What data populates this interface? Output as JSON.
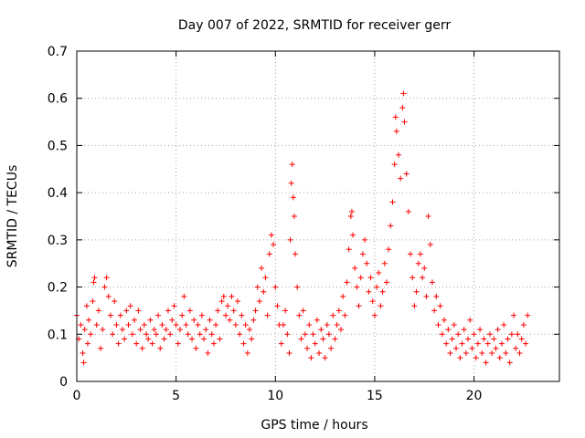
{
  "chart_data": {
    "type": "scatter",
    "title": "Day 007 of 2022, SRMTID for receiver gerr",
    "xlabel": "GPS time / hours",
    "ylabel": "SRMTID / TECUs",
    "xlim": [
      0,
      24.3
    ],
    "ylim": [
      0,
      0.7
    ],
    "xticks": [
      0,
      5,
      10,
      15,
      20
    ],
    "xtick_labels": [
      "0",
      "5",
      "10",
      "15",
      "20"
    ],
    "yticks": [
      0,
      0.1,
      0.2,
      0.3,
      0.4,
      0.5,
      0.6,
      0.7
    ],
    "ytick_labels": [
      "0",
      "0.1",
      "0.2",
      "0.3",
      "0.4",
      "0.5",
      "0.6",
      "0.7"
    ],
    "grid": true,
    "marker": "plus",
    "color": "#ff0000",
    "series": [
      {
        "name": "SRMTID",
        "points": [
          [
            0.0,
            0.14
          ],
          [
            0.1,
            0.09
          ],
          [
            0.2,
            0.12
          ],
          [
            0.3,
            0.06
          ],
          [
            0.35,
            0.04
          ],
          [
            0.4,
            0.11
          ],
          [
            0.5,
            0.16
          ],
          [
            0.55,
            0.08
          ],
          [
            0.6,
            0.13
          ],
          [
            0.7,
            0.1
          ],
          [
            0.8,
            0.17
          ],
          [
            0.85,
            0.21
          ],
          [
            0.9,
            0.22
          ],
          [
            1.0,
            0.12
          ],
          [
            1.1,
            0.15
          ],
          [
            1.2,
            0.07
          ],
          [
            1.3,
            0.11
          ],
          [
            1.4,
            0.2
          ],
          [
            1.5,
            0.22
          ],
          [
            1.6,
            0.18
          ],
          [
            1.7,
            0.14
          ],
          [
            1.8,
            0.1
          ],
          [
            1.9,
            0.17
          ],
          [
            2.0,
            0.12
          ],
          [
            2.1,
            0.08
          ],
          [
            2.2,
            0.14
          ],
          [
            2.3,
            0.11
          ],
          [
            2.4,
            0.09
          ],
          [
            2.5,
            0.15
          ],
          [
            2.6,
            0.12
          ],
          [
            2.7,
            0.16
          ],
          [
            2.8,
            0.1
          ],
          [
            2.9,
            0.13
          ],
          [
            3.0,
            0.08
          ],
          [
            3.1,
            0.15
          ],
          [
            3.2,
            0.11
          ],
          [
            3.3,
            0.07
          ],
          [
            3.4,
            0.12
          ],
          [
            3.5,
            0.1
          ],
          [
            3.6,
            0.09
          ],
          [
            3.7,
            0.13
          ],
          [
            3.8,
            0.08
          ],
          [
            3.9,
            0.11
          ],
          [
            4.0,
            0.1
          ],
          [
            4.1,
            0.14
          ],
          [
            4.2,
            0.07
          ],
          [
            4.3,
            0.12
          ],
          [
            4.4,
            0.09
          ],
          [
            4.5,
            0.11
          ],
          [
            4.6,
            0.15
          ],
          [
            4.7,
            0.1
          ],
          [
            4.8,
            0.13
          ],
          [
            4.9,
            0.16
          ],
          [
            5.0,
            0.12
          ],
          [
            5.1,
            0.08
          ],
          [
            5.2,
            0.11
          ],
          [
            5.3,
            0.14
          ],
          [
            5.4,
            0.18
          ],
          [
            5.5,
            0.12
          ],
          [
            5.6,
            0.1
          ],
          [
            5.7,
            0.15
          ],
          [
            5.8,
            0.09
          ],
          [
            5.9,
            0.13
          ],
          [
            6.0,
            0.07
          ],
          [
            6.1,
            0.12
          ],
          [
            6.2,
            0.1
          ],
          [
            6.3,
            0.14
          ],
          [
            6.4,
            0.09
          ],
          [
            6.5,
            0.11
          ],
          [
            6.6,
            0.06
          ],
          [
            6.7,
            0.13
          ],
          [
            6.8,
            0.1
          ],
          [
            6.9,
            0.08
          ],
          [
            7.0,
            0.12
          ],
          [
            7.1,
            0.15
          ],
          [
            7.2,
            0.09
          ],
          [
            7.3,
            0.17
          ],
          [
            7.4,
            0.18
          ],
          [
            7.5,
            0.14
          ],
          [
            7.6,
            0.16
          ],
          [
            7.7,
            0.13
          ],
          [
            7.8,
            0.18
          ],
          [
            7.9,
            0.15
          ],
          [
            8.0,
            0.12
          ],
          [
            8.1,
            0.17
          ],
          [
            8.2,
            0.1
          ],
          [
            8.3,
            0.14
          ],
          [
            8.4,
            0.08
          ],
          [
            8.5,
            0.12
          ],
          [
            8.6,
            0.06
          ],
          [
            8.7,
            0.11
          ],
          [
            8.8,
            0.09
          ],
          [
            8.9,
            0.13
          ],
          [
            9.0,
            0.15
          ],
          [
            9.1,
            0.2
          ],
          [
            9.2,
            0.17
          ],
          [
            9.3,
            0.24
          ],
          [
            9.4,
            0.19
          ],
          [
            9.5,
            0.22
          ],
          [
            9.6,
            0.14
          ],
          [
            9.7,
            0.27
          ],
          [
            9.8,
            0.31
          ],
          [
            9.9,
            0.29
          ],
          [
            10.0,
            0.2
          ],
          [
            10.1,
            0.16
          ],
          [
            10.2,
            0.12
          ],
          [
            10.3,
            0.08
          ],
          [
            10.4,
            0.12
          ],
          [
            10.5,
            0.15
          ],
          [
            10.6,
            0.1
          ],
          [
            10.7,
            0.06
          ],
          [
            10.75,
            0.3
          ],
          [
            10.8,
            0.42
          ],
          [
            10.85,
            0.46
          ],
          [
            10.9,
            0.39
          ],
          [
            10.95,
            0.35
          ],
          [
            11.0,
            0.27
          ],
          [
            11.1,
            0.2
          ],
          [
            11.2,
            0.14
          ],
          [
            11.3,
            0.09
          ],
          [
            11.4,
            0.15
          ],
          [
            11.5,
            0.1
          ],
          [
            11.6,
            0.07
          ],
          [
            11.7,
            0.12
          ],
          [
            11.8,
            0.05
          ],
          [
            11.9,
            0.1
          ],
          [
            12.0,
            0.08
          ],
          [
            12.1,
            0.13
          ],
          [
            12.2,
            0.06
          ],
          [
            12.3,
            0.11
          ],
          [
            12.4,
            0.09
          ],
          [
            12.5,
            0.05
          ],
          [
            12.6,
            0.12
          ],
          [
            12.7,
            0.1
          ],
          [
            12.8,
            0.07
          ],
          [
            12.9,
            0.14
          ],
          [
            13.0,
            0.09
          ],
          [
            13.1,
            0.12
          ],
          [
            13.2,
            0.15
          ],
          [
            13.3,
            0.11
          ],
          [
            13.4,
            0.18
          ],
          [
            13.5,
            0.14
          ],
          [
            13.6,
            0.21
          ],
          [
            13.7,
            0.28
          ],
          [
            13.8,
            0.35
          ],
          [
            13.85,
            0.36
          ],
          [
            13.9,
            0.31
          ],
          [
            14.0,
            0.24
          ],
          [
            14.1,
            0.2
          ],
          [
            14.2,
            0.16
          ],
          [
            14.3,
            0.22
          ],
          [
            14.4,
            0.27
          ],
          [
            14.5,
            0.3
          ],
          [
            14.6,
            0.25
          ],
          [
            14.7,
            0.19
          ],
          [
            14.8,
            0.22
          ],
          [
            14.9,
            0.17
          ],
          [
            15.0,
            0.14
          ],
          [
            15.1,
            0.2
          ],
          [
            15.2,
            0.23
          ],
          [
            15.3,
            0.16
          ],
          [
            15.4,
            0.19
          ],
          [
            15.5,
            0.25
          ],
          [
            15.6,
            0.21
          ],
          [
            15.7,
            0.28
          ],
          [
            15.8,
            0.33
          ],
          [
            15.9,
            0.38
          ],
          [
            16.0,
            0.46
          ],
          [
            16.05,
            0.56
          ],
          [
            16.1,
            0.53
          ],
          [
            16.2,
            0.48
          ],
          [
            16.3,
            0.43
          ],
          [
            16.4,
            0.58
          ],
          [
            16.45,
            0.61
          ],
          [
            16.5,
            0.55
          ],
          [
            16.6,
            0.44
          ],
          [
            16.7,
            0.36
          ],
          [
            16.8,
            0.27
          ],
          [
            16.9,
            0.22
          ],
          [
            17.0,
            0.16
          ],
          [
            17.1,
            0.19
          ],
          [
            17.2,
            0.25
          ],
          [
            17.3,
            0.27
          ],
          [
            17.4,
            0.22
          ],
          [
            17.5,
            0.24
          ],
          [
            17.6,
            0.18
          ],
          [
            17.7,
            0.35
          ],
          [
            17.8,
            0.29
          ],
          [
            17.9,
            0.21
          ],
          [
            18.0,
            0.15
          ],
          [
            18.1,
            0.18
          ],
          [
            18.2,
            0.12
          ],
          [
            18.3,
            0.16
          ],
          [
            18.4,
            0.1
          ],
          [
            18.5,
            0.13
          ],
          [
            18.6,
            0.08
          ],
          [
            18.7,
            0.11
          ],
          [
            18.8,
            0.06
          ],
          [
            18.9,
            0.09
          ],
          [
            19.0,
            0.12
          ],
          [
            19.1,
            0.07
          ],
          [
            19.2,
            0.1
          ],
          [
            19.3,
            0.05
          ],
          [
            19.4,
            0.08
          ],
          [
            19.5,
            0.11
          ],
          [
            19.6,
            0.06
          ],
          [
            19.7,
            0.09
          ],
          [
            19.8,
            0.13
          ],
          [
            19.9,
            0.07
          ],
          [
            20.0,
            0.1
          ],
          [
            20.1,
            0.05
          ],
          [
            20.2,
            0.08
          ],
          [
            20.3,
            0.11
          ],
          [
            20.4,
            0.06
          ],
          [
            20.5,
            0.09
          ],
          [
            20.6,
            0.04
          ],
          [
            20.7,
            0.08
          ],
          [
            20.8,
            0.1
          ],
          [
            20.9,
            0.06
          ],
          [
            21.0,
            0.09
          ],
          [
            21.1,
            0.07
          ],
          [
            21.2,
            0.11
          ],
          [
            21.3,
            0.05
          ],
          [
            21.4,
            0.08
          ],
          [
            21.5,
            0.12
          ],
          [
            21.6,
            0.06
          ],
          [
            21.7,
            0.09
          ],
          [
            21.8,
            0.04
          ],
          [
            21.9,
            0.1
          ],
          [
            22.0,
            0.14
          ],
          [
            22.1,
            0.07
          ],
          [
            22.2,
            0.1
          ],
          [
            22.3,
            0.06
          ],
          [
            22.4,
            0.09
          ],
          [
            22.5,
            0.12
          ],
          [
            22.6,
            0.08
          ],
          [
            22.7,
            0.14
          ]
        ]
      }
    ]
  }
}
